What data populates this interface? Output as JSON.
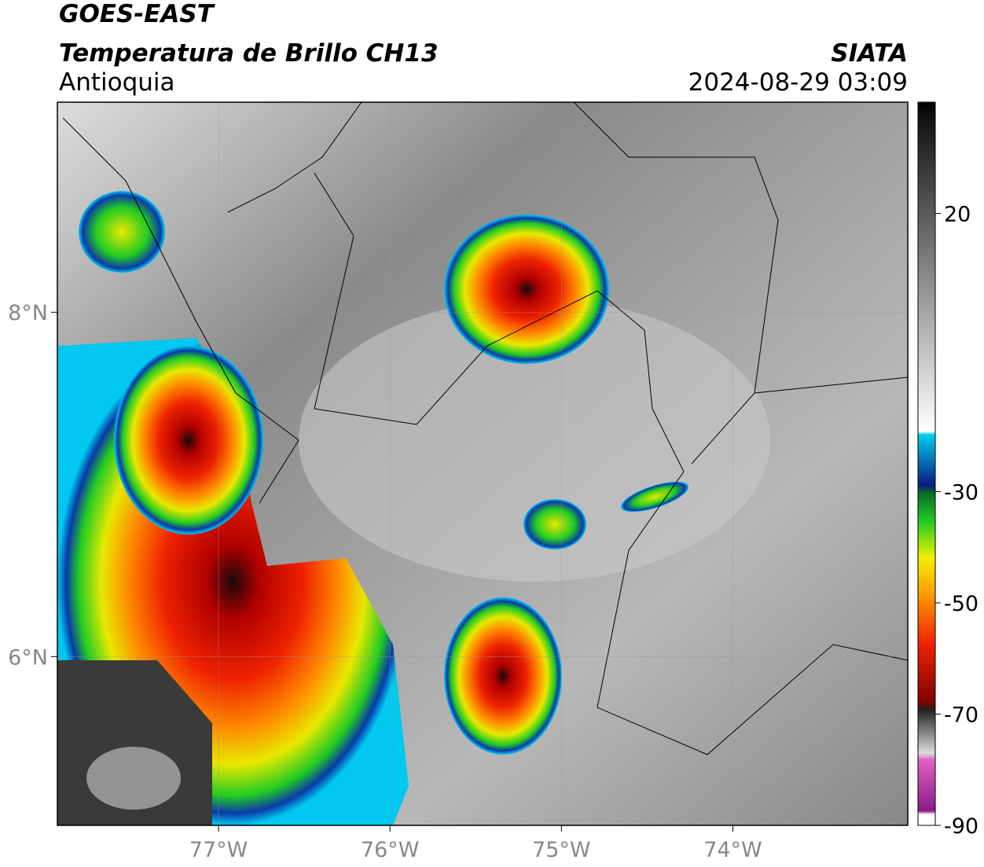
{
  "header": {
    "title": "GOES-EAST",
    "subtitle": "Temperatura de Brillo CH13",
    "region": "Antioquia",
    "source": "SIATA",
    "datetime": "2024-08-29 03:09"
  },
  "map": {
    "xlim": [
      -77.94,
      -72.98
    ],
    "ylim": [
      5.02,
      9.22
    ],
    "xticks": [
      {
        "value": -77,
        "label": "77°W"
      },
      {
        "value": -76,
        "label": "76°W"
      },
      {
        "value": -75,
        "label": "75°W"
      },
      {
        "value": -74,
        "label": "74°W"
      }
    ],
    "yticks": [
      {
        "value": 8,
        "label": "8°N"
      },
      {
        "value": 6,
        "label": "6°N"
      }
    ],
    "grid": true
  },
  "colorbar": {
    "lim": [
      -90,
      40
    ],
    "ticks": [
      20,
      -30,
      -50,
      -70,
      -90
    ]
  }
}
